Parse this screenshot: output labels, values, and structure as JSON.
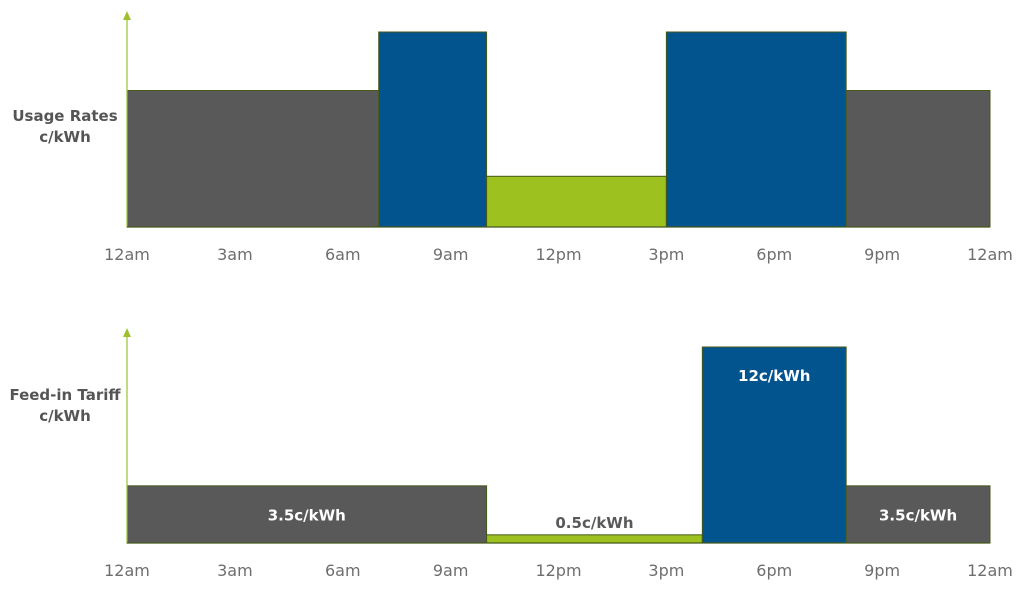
{
  "chart_data": [
    {
      "type": "bar",
      "ylabel_lines": [
        "Usage Rates",
        "c/kWh"
      ],
      "xticks": [
        "12am",
        "3am",
        "6am",
        "9am",
        "12pm",
        "3pm",
        "6pm",
        "9pm",
        "12am"
      ],
      "axis_color": "#9dc12e",
      "segments": [
        {
          "start_hour": 0,
          "end_hour": 7,
          "level": 0.7,
          "color": "#595959",
          "label": ""
        },
        {
          "start_hour": 7,
          "end_hour": 10,
          "level": 1.0,
          "color": "#02548f",
          "label": ""
        },
        {
          "start_hour": 10,
          "end_hour": 15,
          "level": 0.26,
          "color": "#9dc11e",
          "label": ""
        },
        {
          "start_hour": 15,
          "end_hour": 20,
          "level": 1.0,
          "color": "#02548f",
          "label": ""
        },
        {
          "start_hour": 20,
          "end_hour": 24,
          "level": 0.7,
          "color": "#595959",
          "label": ""
        }
      ]
    },
    {
      "type": "bar",
      "ylabel_lines": [
        "Feed-in Tariff",
        "c/kWh"
      ],
      "xticks": [
        "12am",
        "3am",
        "6am",
        "9am",
        "12pm",
        "3pm",
        "6pm",
        "9pm",
        "12am"
      ],
      "axis_color": "#9dc12e",
      "segments": [
        {
          "start_hour": 0,
          "end_hour": 10,
          "value": 3.5,
          "color": "#595959",
          "label": "3.5c/kWh"
        },
        {
          "start_hour": 10,
          "end_hour": 16,
          "value": 0.5,
          "color": "#9dc11e",
          "label": "0.5c/kWh"
        },
        {
          "start_hour": 16,
          "end_hour": 20,
          "value": 12,
          "color": "#02548f",
          "label": "12c/kWh"
        },
        {
          "start_hour": 20,
          "end_hour": 24,
          "value": 3.5,
          "color": "#595959",
          "label": "3.5c/kWh"
        }
      ]
    }
  ]
}
